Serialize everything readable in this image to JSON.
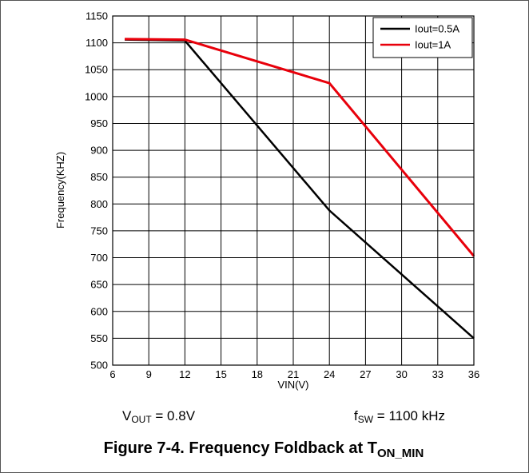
{
  "chart_data": {
    "type": "line",
    "xlabel": "VIN(V)",
    "ylabel": "Frequency(KHZ)",
    "xlim": [
      6,
      36
    ],
    "ylim": [
      500,
      1150
    ],
    "xticks": [
      6,
      9,
      12,
      15,
      18,
      21,
      24,
      27,
      30,
      33,
      36
    ],
    "yticks": [
      500,
      550,
      600,
      650,
      700,
      750,
      800,
      850,
      900,
      950,
      1000,
      1050,
      1100,
      1150
    ],
    "grid": true,
    "legend_position": "top-right",
    "series": [
      {
        "name": "Iout=0.5A",
        "color": "#000000",
        "x": [
          7,
          12,
          24,
          36
        ],
        "y": [
          1106,
          1104,
          788,
          550
        ]
      },
      {
        "name": "Iout=1A",
        "color": "#e8000b",
        "x": [
          7,
          12,
          24,
          36
        ],
        "y": [
          1107,
          1106,
          1025,
          703
        ]
      }
    ]
  },
  "conditions": {
    "vout_main": "V",
    "vout_sub": "OUT",
    "vout_rest": " = 0.8V",
    "fsw_main": "f",
    "fsw_sub": "SW",
    "fsw_rest": " = 1100 kHz"
  },
  "caption": {
    "main": "Figure 7-4. Frequency Foldback at T",
    "sub": "ON_MIN"
  }
}
